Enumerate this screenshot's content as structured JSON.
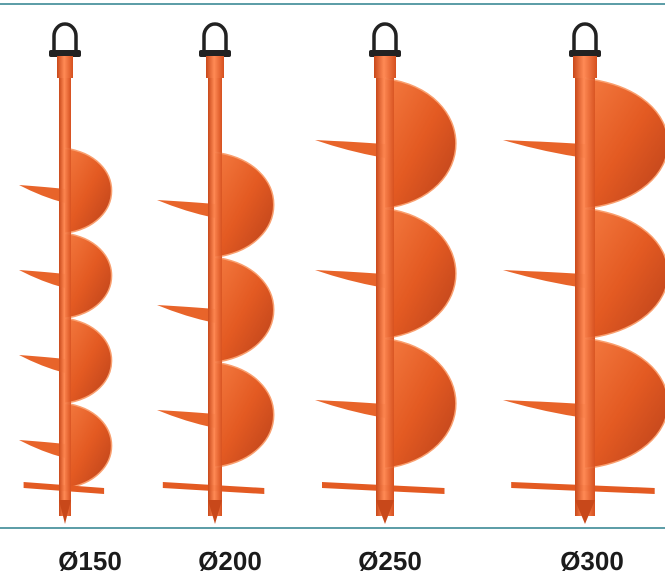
{
  "labels": [
    "Ø150",
    "Ø200",
    "Ø250",
    "Ø300"
  ]
}
